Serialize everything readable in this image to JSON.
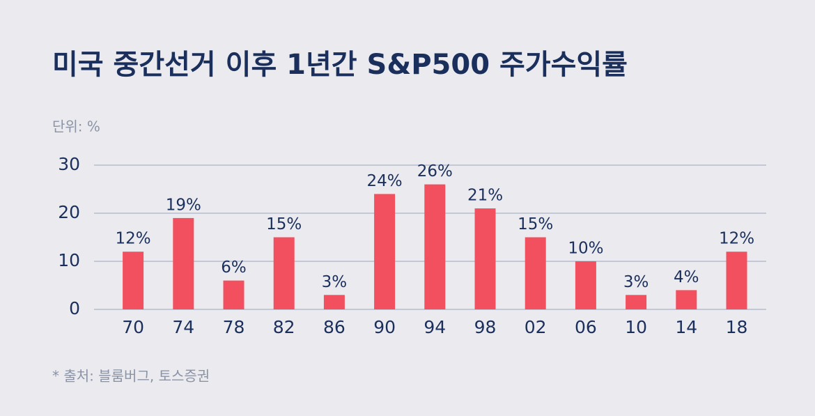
{
  "chart_data": {
    "type": "bar",
    "title": "미국 중간선거 이후 1년간 S&P500 주가수익률",
    "subtitle": "단위: %",
    "source": "* 출처: 블룸버그, 토스증권",
    "categories": [
      "70",
      "74",
      "78",
      "82",
      "86",
      "90",
      "94",
      "98",
      "02",
      "06",
      "10",
      "14",
      "18"
    ],
    "values": [
      12,
      19,
      6,
      15,
      3,
      24,
      26,
      21,
      15,
      10,
      3,
      4,
      12
    ],
    "value_labels": [
      "12%",
      "19%",
      "6%",
      "15%",
      "3%",
      "24%",
      "26%",
      "21%",
      "15%",
      "10%",
      "3%",
      "4%",
      "12%"
    ],
    "color": "#f2505f",
    "ylim": [
      0,
      30
    ],
    "yticks": [
      0,
      10,
      20,
      30
    ],
    "grid": true
  }
}
